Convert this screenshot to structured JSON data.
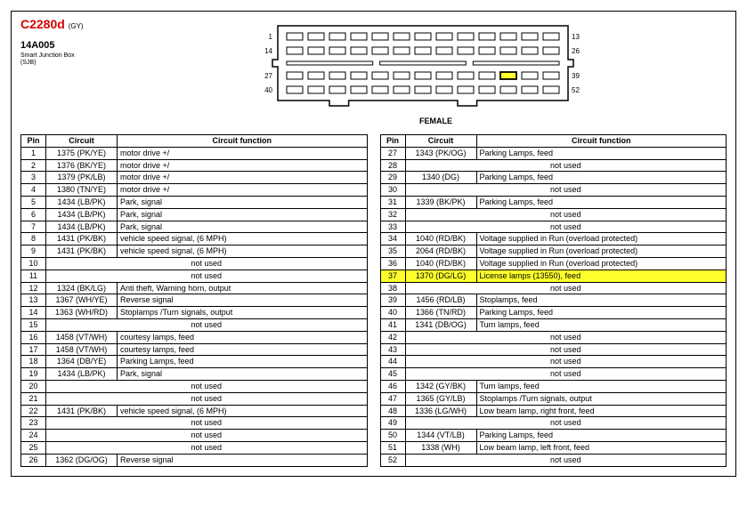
{
  "header": {
    "connector_id": "C2280d",
    "gy_label": "(GY)",
    "part_no": "14A005",
    "sjb_line1": "Smart Junction Box",
    "sjb_line2": "(SJB)",
    "female_label": "FEMALE"
  },
  "connector": {
    "row_labels_left": [
      "1",
      "14",
      "27",
      "40"
    ],
    "row_labels_right": [
      "13",
      "26",
      "39",
      "52"
    ],
    "highlighted_pin": 37,
    "highlight_color": "#ffff2b",
    "outline_color": "#000000",
    "pin_width": 18,
    "pin_height": 8,
    "pin_gap": 6,
    "row_gap_small": 8,
    "row_gap_large": 20
  },
  "table_headers": {
    "pin": "Pin",
    "circuit": "Circuit",
    "func": "Circuit function"
  },
  "not_used_label": "not used",
  "highlight_row_pin": 37,
  "rows_left": [
    {
      "pin": "1",
      "circuit": "1375 (PK/YE)",
      "func": "motor drive +/"
    },
    {
      "pin": "2",
      "circuit": "1376 (BK/YE)",
      "func": "motor drive +/"
    },
    {
      "pin": "3",
      "circuit": "1379 (PK/LB)",
      "func": "motor drive +/"
    },
    {
      "pin": "4",
      "circuit": "1380 (TN/YE)",
      "func": "motor drive +/"
    },
    {
      "pin": "5",
      "circuit": "1434 (LB/PK)",
      "func": "Park, signal"
    },
    {
      "pin": "6",
      "circuit": "1434 (LB/PK)",
      "func": "Park, signal"
    },
    {
      "pin": "7",
      "circuit": "1434 (LB/PK)",
      "func": "Park, signal"
    },
    {
      "pin": "8",
      "circuit": "1431 (PK/BK)",
      "func": "vehicle speed signal, (6 MPH)"
    },
    {
      "pin": "9",
      "circuit": "1431 (PK/BK)",
      "func": "vehicle speed signal, (6 MPH)"
    },
    {
      "pin": "10",
      "circuit": "",
      "func": "",
      "notused": true
    },
    {
      "pin": "11",
      "circuit": "",
      "func": "",
      "notused": true
    },
    {
      "pin": "12",
      "circuit": "1324 (BK/LG)",
      "func": "Anti       theft, Warning horn, output"
    },
    {
      "pin": "13",
      "circuit": "1367 (WH/YE)",
      "func": "Reverse signal"
    },
    {
      "pin": "14",
      "circuit": "1363 (WH/RD)",
      "func": "Stoplamps /Turn signals, output"
    },
    {
      "pin": "15",
      "circuit": "",
      "func": "",
      "notused": true
    },
    {
      "pin": "16",
      "circuit": "1458 (VT/WH)",
      "func": "courtesy lamps, feed"
    },
    {
      "pin": "17",
      "circuit": "1458 (VT/WH)",
      "func": "courtesy lamps, feed"
    },
    {
      "pin": "18",
      "circuit": "1364 (DB/YE)",
      "func": "Parking Lamps, feed"
    },
    {
      "pin": "19",
      "circuit": "1434 (LB/PK)",
      "func": "Park, signal"
    },
    {
      "pin": "20",
      "circuit": "",
      "func": "",
      "notused": true
    },
    {
      "pin": "21",
      "circuit": "",
      "func": "",
      "notused": true
    },
    {
      "pin": "22",
      "circuit": "1431 (PK/BK)",
      "func": "vehicle speed signal, (6 MPH)"
    },
    {
      "pin": "23",
      "circuit": "",
      "func": "",
      "notused": true
    },
    {
      "pin": "24",
      "circuit": "",
      "func": "",
      "notused": true
    },
    {
      "pin": "25",
      "circuit": "",
      "func": "",
      "notused": true
    },
    {
      "pin": "26",
      "circuit": "1362 (DG/OG)",
      "func": "Reverse signal"
    }
  ],
  "rows_right": [
    {
      "pin": "27",
      "circuit": "1343 (PK/OG)",
      "func": "Parking Lamps, feed"
    },
    {
      "pin": "28",
      "circuit": "",
      "func": "",
      "notused": true
    },
    {
      "pin": "29",
      "circuit": "1340 (DG)",
      "func": "Parking Lamps, feed"
    },
    {
      "pin": "30",
      "circuit": "",
      "func": "",
      "notused": true
    },
    {
      "pin": "31",
      "circuit": "1339 (BK/PK)",
      "func": "Parking Lamps, feed"
    },
    {
      "pin": "32",
      "circuit": "",
      "func": "",
      "notused": true
    },
    {
      "pin": "33",
      "circuit": "",
      "func": "",
      "notused": true
    },
    {
      "pin": "34",
      "circuit": "1040 (RD/BK)",
      "func": "Voltage supplied in Run (overload protected)"
    },
    {
      "pin": "35",
      "circuit": "2064 (RD/BK)",
      "func": "Voltage supplied in Run (overload protected)"
    },
    {
      "pin": "36",
      "circuit": "1040 (RD/BK)",
      "func": "Voltage supplied in Run (overload protected)"
    },
    {
      "pin": "37",
      "circuit": "1370 (DG/LG)",
      "func": "License lamps (13550), feed"
    },
    {
      "pin": "38",
      "circuit": "",
      "func": "",
      "notused": true
    },
    {
      "pin": "39",
      "circuit": "1456 (RD/LB)",
      "func": "Stoplamps, feed"
    },
    {
      "pin": "40",
      "circuit": "1366 (TN/RD)",
      "func": "Parking Lamps, feed"
    },
    {
      "pin": "41",
      "circuit": "1341 (DB/OG)",
      "func": "Turn lamps, feed"
    },
    {
      "pin": "42",
      "circuit": "",
      "func": "",
      "notused": true
    },
    {
      "pin": "43",
      "circuit": "",
      "func": "",
      "notused": true
    },
    {
      "pin": "44",
      "circuit": "",
      "func": "",
      "notused": true
    },
    {
      "pin": "45",
      "circuit": "",
      "func": "",
      "notused": true
    },
    {
      "pin": "46",
      "circuit": "1342 (GY/BK)",
      "func": "Turn lamps, feed"
    },
    {
      "pin": "47",
      "circuit": "1365 (GY/LB)",
      "func": "Stoplamps /Turn signals, output"
    },
    {
      "pin": "48",
      "circuit": "1336 (LG/WH)",
      "func": "Low beam lamp, right front, feed"
    },
    {
      "pin": "49",
      "circuit": "",
      "func": "",
      "notused": true
    },
    {
      "pin": "50",
      "circuit": "1344 (VT/LB)",
      "func": "Parking Lamps, feed"
    },
    {
      "pin": "51",
      "circuit": "1338 (WH)",
      "func": "Low beam lamp, left front, feed"
    },
    {
      "pin": "52",
      "circuit": "",
      "func": "",
      "notused": true
    }
  ],
  "colors": {
    "connector_id": "#d40000",
    "text": "#000000",
    "highlight": "#ffff2b"
  }
}
